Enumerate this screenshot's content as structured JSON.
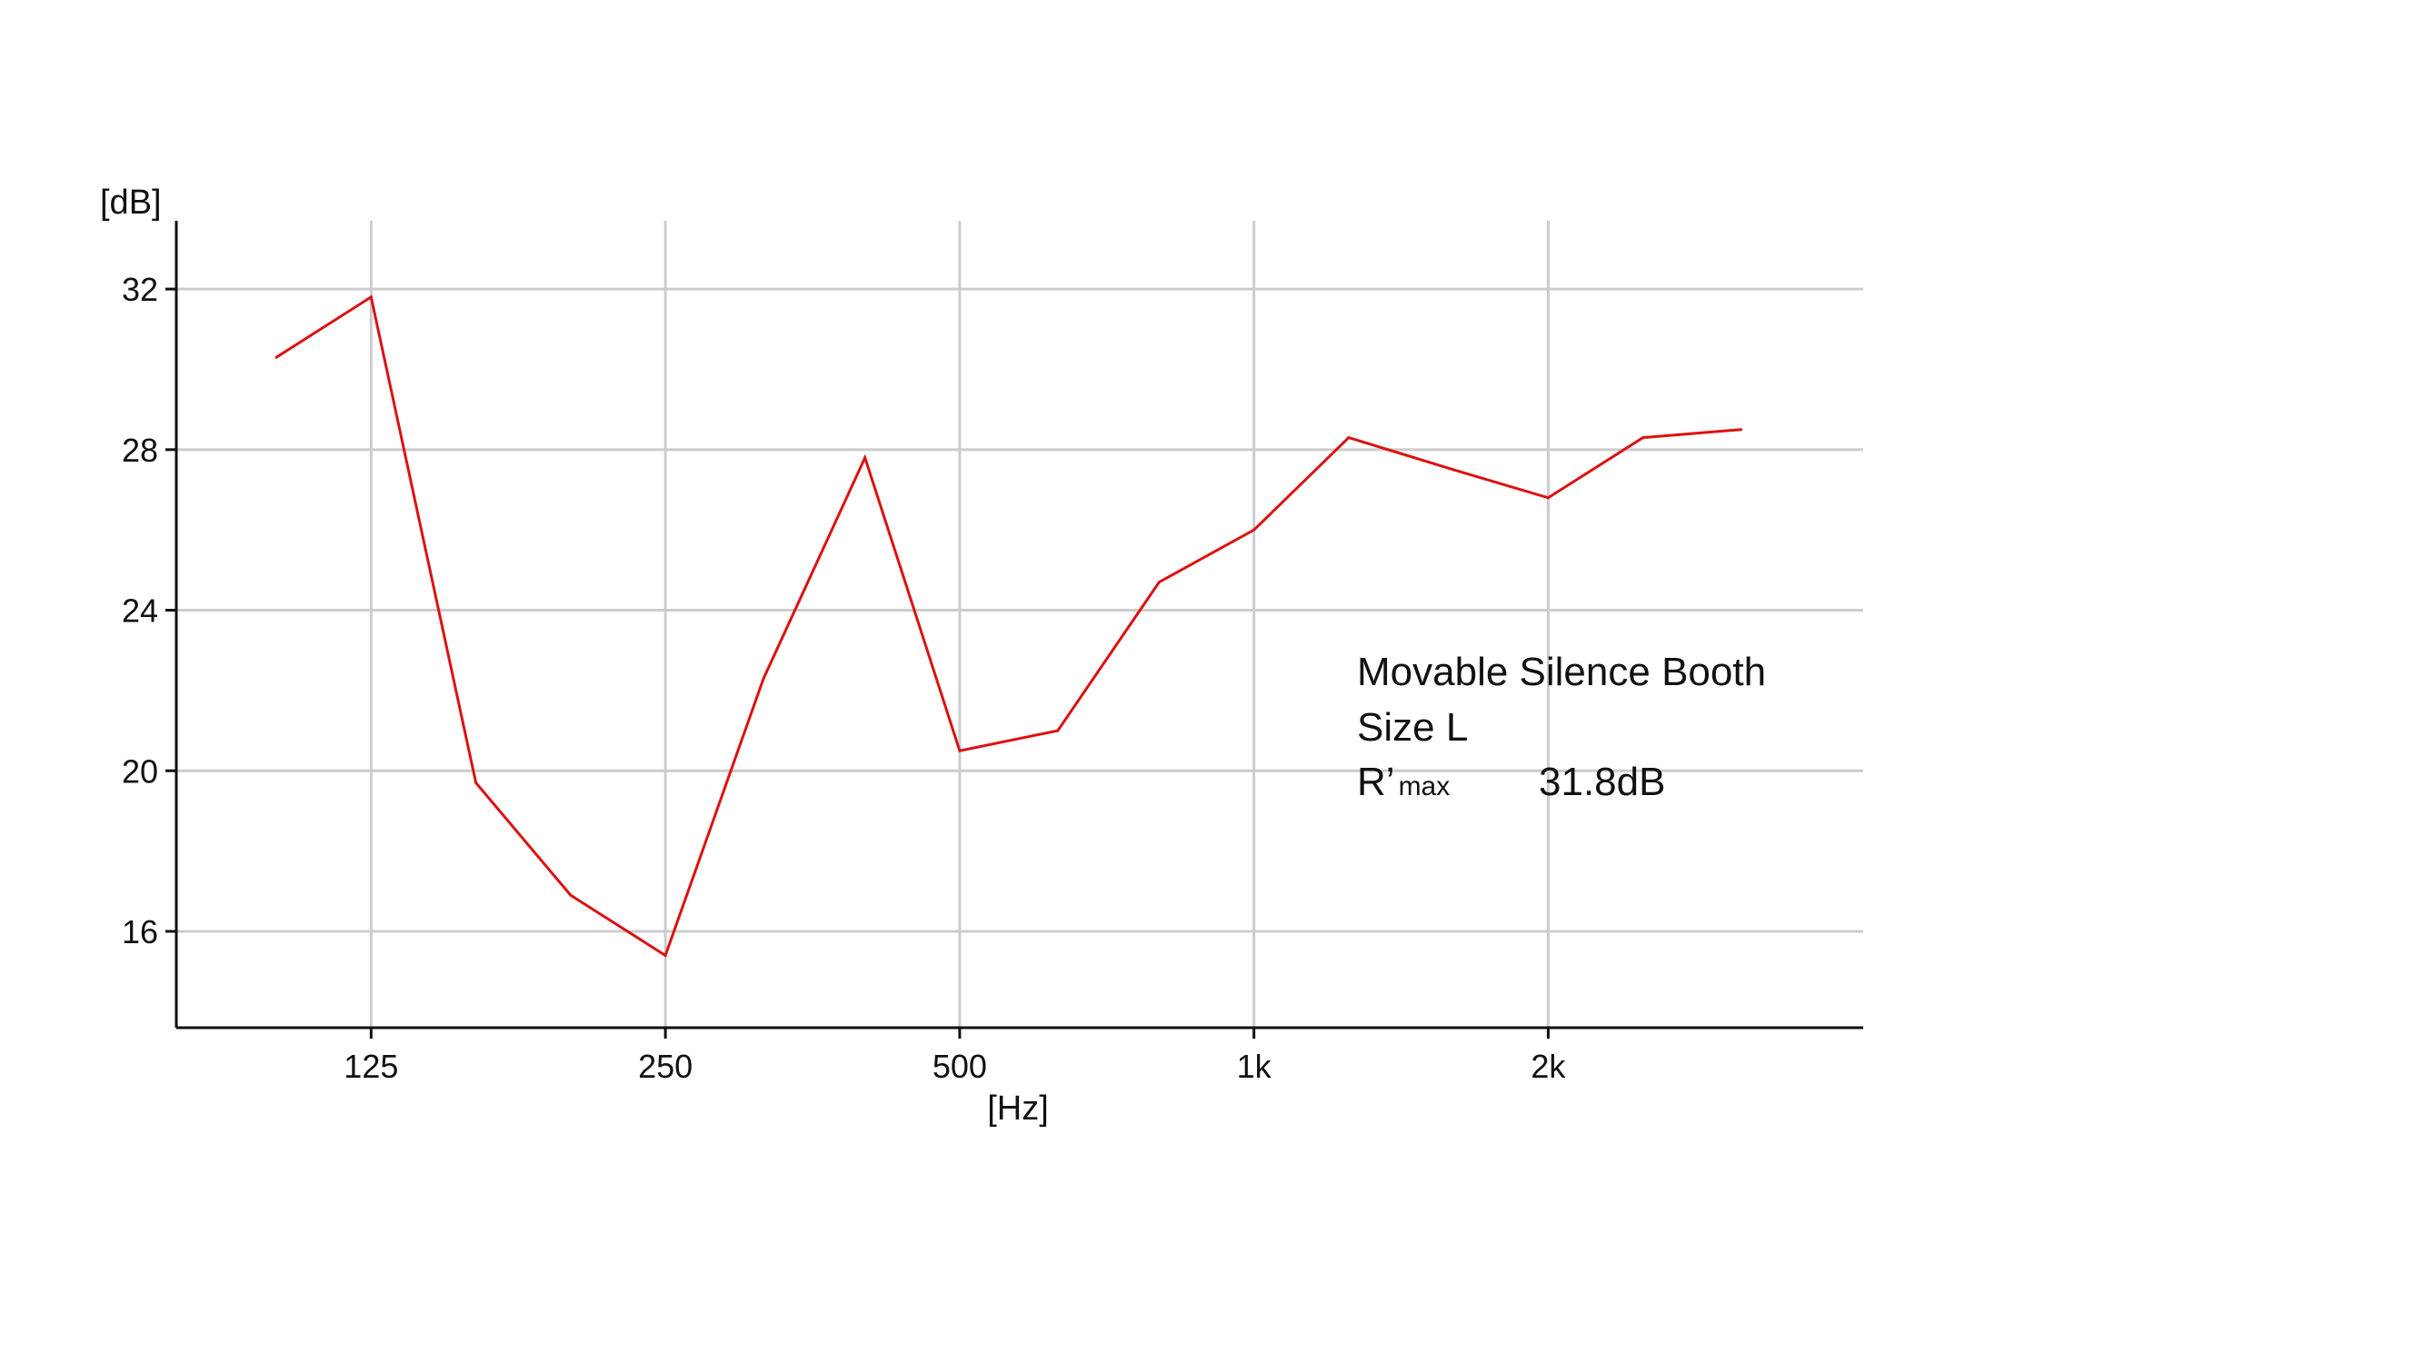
{
  "chart_data": {
    "type": "line",
    "title": "",
    "xlabel": "[Hz]",
    "ylabel": "[dB]",
    "x_scale": "log",
    "x": [
      100,
      125,
      160,
      200,
      250,
      315,
      400,
      500,
      630,
      800,
      1000,
      1250,
      1600,
      2000,
      2500,
      3150
    ],
    "series": [
      {
        "values": [
          30.3,
          31.8,
          19.7,
          16.9,
          15.4,
          22.3,
          27.8,
          20.5,
          21.0,
          24.7,
          26.0,
          28.3,
          27.5,
          26.8,
          28.3,
          28.5
        ]
      }
    ],
    "x_ticks": [
      {
        "value": 125,
        "label": "125"
      },
      {
        "value": 250,
        "label": "250"
      },
      {
        "value": 500,
        "label": "500"
      },
      {
        "value": 1000,
        "label": "1k"
      },
      {
        "value": 2000,
        "label": "2k"
      }
    ],
    "y_ticks": [
      {
        "value": 16,
        "label": "16"
      },
      {
        "value": 20,
        "label": "20"
      },
      {
        "value": 24,
        "label": "24"
      },
      {
        "value": 28,
        "label": "28"
      },
      {
        "value": 32,
        "label": "32"
      }
    ],
    "ylim": [
      13.6,
      33.7
    ],
    "xlim": [
      79,
      4200
    ],
    "grid": true,
    "line_color": "#dd1111",
    "annotation": {
      "line1": "Movable Silence Booth",
      "line2": "Size L",
      "label_main": "R’",
      "label_sub": "max",
      "value": "31.8dB"
    }
  }
}
